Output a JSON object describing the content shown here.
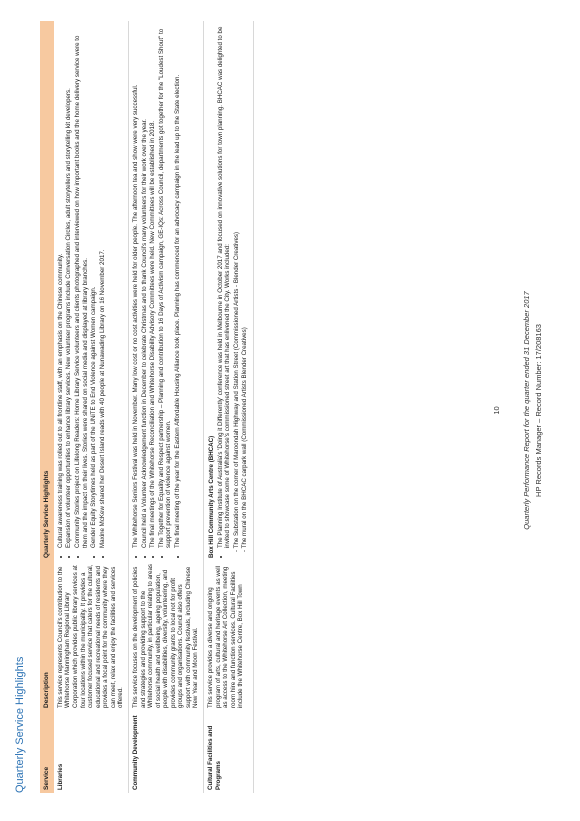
{
  "page_title": "Quarterly Service Highlights",
  "table": {
    "headers": [
      "Service",
      "Description",
      "Quarterly Service Highlights"
    ],
    "rows": [
      {
        "service": "Libraries",
        "description": "This service represents Council's contribution to the Whitehorse Manningham Regional Library Corporation which provides public library services at four locations within the municipality. It provides a customer focused service that caters for the cultural, educational and recreational needs of residents and provides a focal point for the community where they can meet, relax and enjoy the facilities and services offered.",
        "subheading": "",
        "highlights": [
          "Cultural awareness training was rolled out to all frontline staff, with an emphasis on the Chinese community.",
          "Expansion of volunteer opportunities to enhance library services. New volunteer programs include Conversation Circles, adult storytellers and storytelling kit developers.",
          "Community Stories project on Lifelong Readers: Home Library Service volunteers and clients photographed and interviewed on how important books and the home delivery service were to them and the impact on their lives. Stories were shared on social media and displayed at library branches.",
          "Gender Equity Storytimes held as part of the UNiTE to End Violence against Women campaign.",
          "Maxine McKew shared her Desert Island reads with 40 people at Nunawading Library on 16 November 2017."
        ],
        "sublist": []
      },
      {
        "service": "Community Development",
        "description": "This service focuses on the development of policies and strategies and providing support to the Whitehorse community, in particular relating to areas of social health and wellbeing, ageing population, people with disabilities, diversity, volunteering, and provides community grants to local not for profit groups and organisations. Council also offers support with community festivals, including Chinese New Year and Moon Festival.",
        "subheading": "",
        "highlights": [
          "The Whitehorse Seniors Festival was held in November. Many low cost or no cost activities were held for older people. The afternoon tea and show were very successful.",
          "Council held a Volunteer Acknowledgement function in December to celebrate Christmas and to thank Council's many volunteers for their work over the year.",
          "The final meetings of the Whitehorse Reconciliation and Whitehorse Disability Advisory Committees were held. New Committees will be established in 2018.",
          "The Together for Equality and Respect partnership – Planning and contribution to 16 Days of Activism campaign, GE-IQs: Across Council, departments got together for the \"Loudest Shout\" to support prevention of violence against women.",
          "The final meeting of the year for the Eastern Affordable Housing Alliance took place. Planning has commenced for an advocacy campaign in the lead up to the State election."
        ],
        "sublist": []
      },
      {
        "service": "Cultural Facilities and Programs",
        "description": "This service provides a diverse and ongoing program of arts, cultural and heritage events as well as access to the Whitehorse Art Collection, meeting room hire and function services. Cultural Facilities include the Whitehorse Centre, Box Hill Town",
        "subheading": "Box Hill Community Arts Centre (BHCAC)",
        "highlights": [
          "The Planning Institute of Australia's 'Doing it Differently' conference was held in Melbourne in October 2017 and focused on innovative solutions for town planning. BHCAC was delighted to be invited to showcase some of Whitehorse's commissioned street art that has enlivened the City. Works included:"
        ],
        "sublist": [
          "- The Substation on the corner of Maroondah Highway and Station Street (Commissioned Artists - Blender Creatives)",
          "- The mural on the BHCAC carpark wall (Commissioned Artists   Blender Creatives)"
        ]
      }
    ]
  },
  "page_number": "10",
  "footer_line1": "Quarterly Performance Report for the quarter ended 31 December 2017",
  "footer_line2": "HP Records Manager – Record Number: 17/208163"
}
